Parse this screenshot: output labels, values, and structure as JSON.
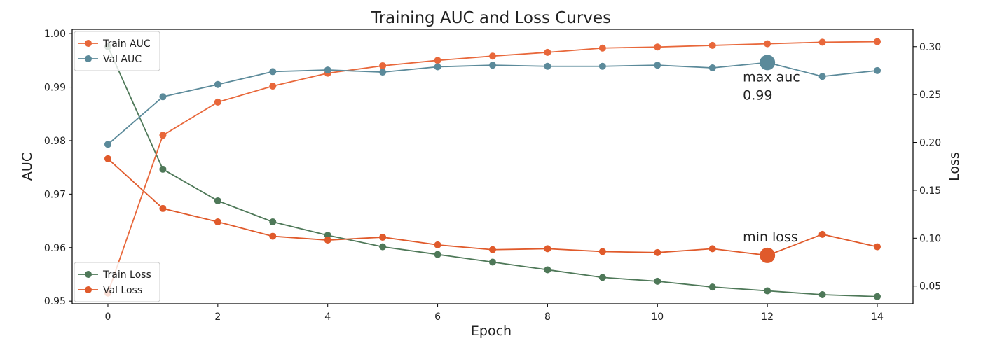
{
  "chart_data": {
    "type": "line",
    "title": "Training AUC and Loss Curves",
    "xlabel": "Epoch",
    "ylabel_left": "AUC",
    "ylabel_right": "Loss",
    "x": [
      0,
      1,
      2,
      3,
      4,
      5,
      6,
      7,
      8,
      9,
      10,
      11,
      12,
      13,
      14
    ],
    "x_ticks": [
      0,
      2,
      4,
      6,
      8,
      10,
      12,
      14
    ],
    "xlim": [
      -0.65,
      14.65
    ],
    "ylim_left": [
      0.9495,
      1.0008
    ],
    "yticks_left": [
      {
        "value": 0.95,
        "label": "0.95"
      },
      {
        "value": 0.96,
        "label": "0.96"
      },
      {
        "value": 0.97,
        "label": "0.97"
      },
      {
        "value": 0.98,
        "label": "0.98"
      },
      {
        "value": 0.99,
        "label": "0.99"
      },
      {
        "value": 1.0,
        "label": "1.00"
      }
    ],
    "ylim_right": [
      0.0315,
      0.3181
    ],
    "yticks_right": [
      {
        "value": 0.05,
        "label": "0.05"
      },
      {
        "value": 0.1,
        "label": "0.10"
      },
      {
        "value": 0.15,
        "label": "0.15"
      },
      {
        "value": 0.2,
        "label": "0.20"
      },
      {
        "value": 0.25,
        "label": "0.25"
      },
      {
        "value": 0.3,
        "label": "0.30"
      }
    ],
    "grid": false,
    "series": [
      {
        "name": "Train AUC",
        "axis": "left",
        "color": "#e8673a",
        "values": [
          0.9515,
          0.981,
          0.9872,
          0.9902,
          0.9926,
          0.994,
          0.995,
          0.9958,
          0.9965,
          0.9973,
          0.9975,
          0.9978,
          0.9981,
          0.9984,
          0.9985
        ]
      },
      {
        "name": "Val AUC",
        "axis": "left",
        "color": "#5b8a9a",
        "values": [
          0.9793,
          0.9882,
          0.9905,
          0.9929,
          0.9932,
          0.9928,
          0.9938,
          0.9941,
          0.9939,
          0.9939,
          0.9941,
          0.9936,
          0.9946,
          0.992,
          0.9931
        ]
      },
      {
        "name": "Train Loss",
        "axis": "right",
        "color": "#4e7858",
        "values": [
          0.3,
          0.172,
          0.139,
          0.117,
          0.103,
          0.091,
          0.083,
          0.075,
          0.067,
          0.059,
          0.055,
          0.049,
          0.045,
          0.041,
          0.039
        ]
      },
      {
        "name": "Val Loss",
        "axis": "right",
        "color": "#e05a2b",
        "values": [
          0.183,
          0.131,
          0.117,
          0.102,
          0.098,
          0.101,
          0.093,
          0.088,
          0.089,
          0.086,
          0.085,
          0.089,
          0.082,
          0.104,
          0.091
        ]
      }
    ],
    "legends": [
      {
        "placement": "top-left",
        "entries": [
          "Train AUC",
          "Val AUC"
        ]
      },
      {
        "placement": "bottom-left",
        "entries": [
          "Train Loss",
          "Val Loss"
        ]
      }
    ],
    "annotations": [
      {
        "series": "Val AUC",
        "x": 12,
        "y": 0.9946,
        "lines": [
          "max auc",
          "0.99"
        ],
        "color": "#5b8a9a"
      },
      {
        "series": "Val Loss",
        "x": 12,
        "y": 0.082,
        "lines": [
          "min loss"
        ],
        "color": "#e05a2b"
      }
    ]
  }
}
